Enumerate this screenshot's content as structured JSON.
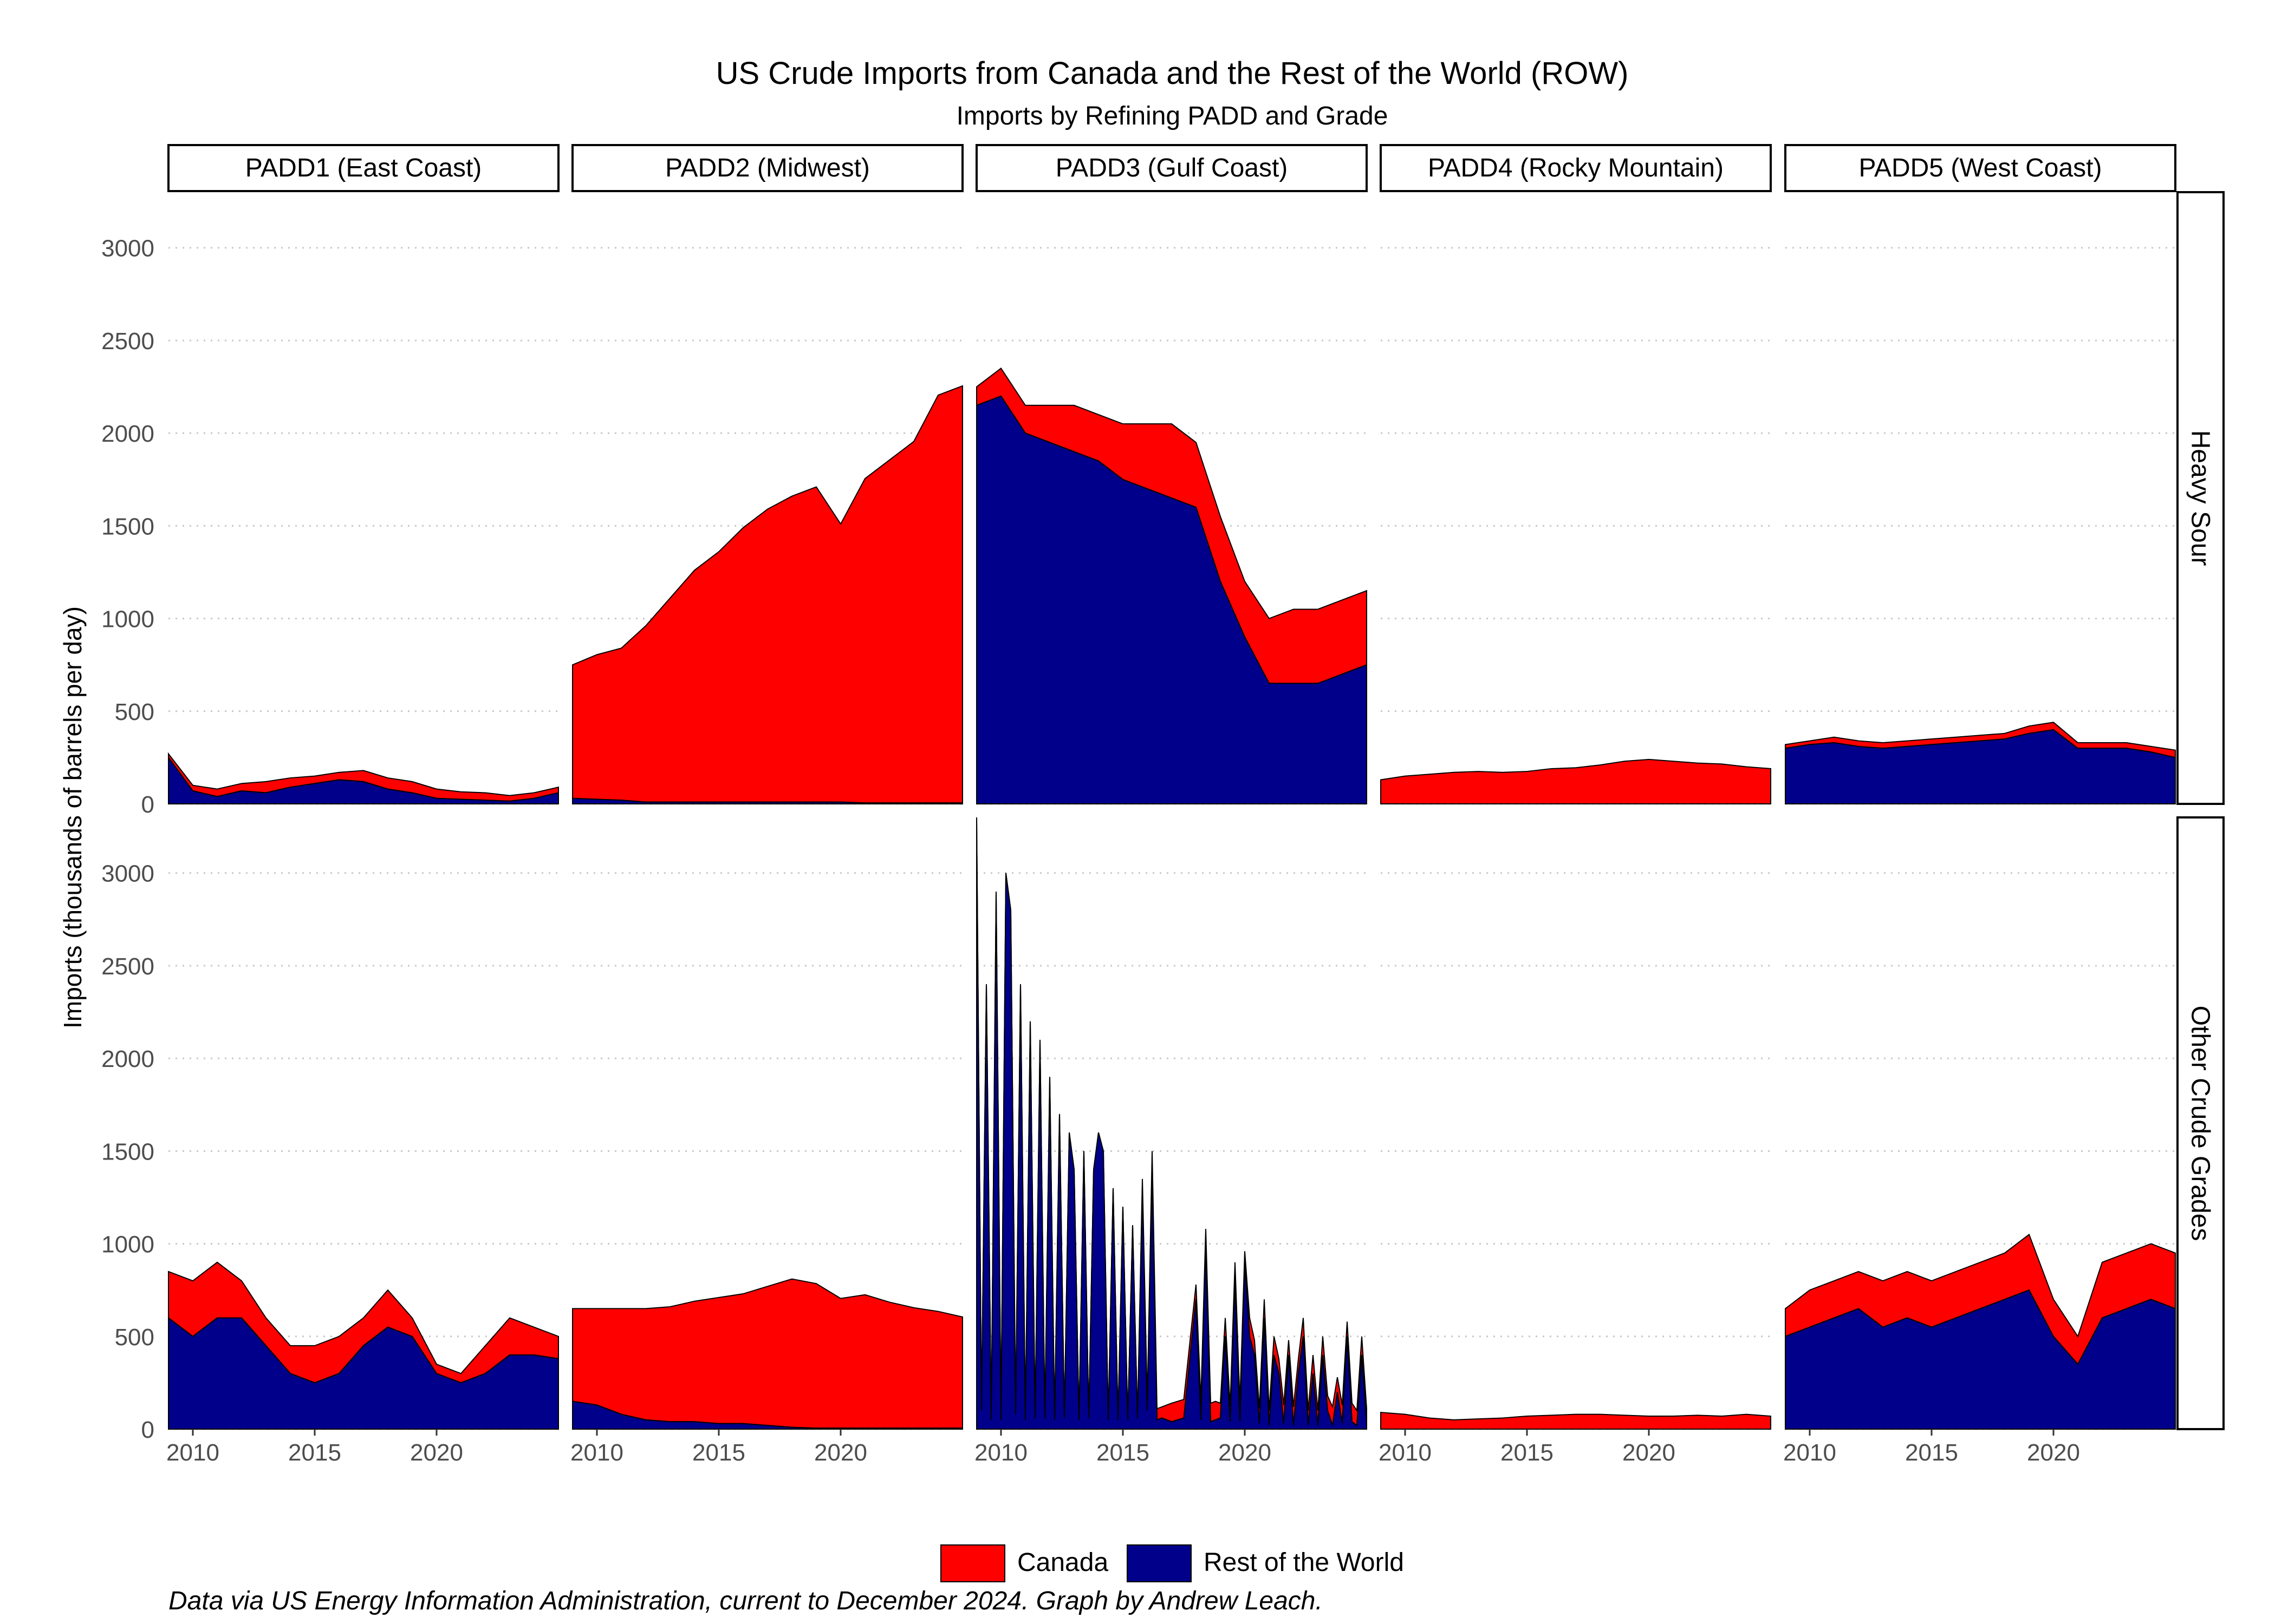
{
  "title": "US Crude Imports from Canada and the Rest of the World (ROW)",
  "subtitle": "Imports by Refining PADD and Grade",
  "caption": "Data via US Energy Information Administration, current to December 2024. Graph by Andrew Leach.",
  "colors": {
    "canada": "#ff0000",
    "row": "#00008b",
    "outline": "#000000",
    "grid": "#c8c8c8",
    "axis_text": "#4d4d4d"
  },
  "chart_data": {
    "type": "area",
    "stacked": true,
    "facets": {
      "columns": [
        "PADD1 (East Coast)",
        "PADD2 (Midwest)",
        "PADD3 (Gulf Coast)",
        "PADD4 (Rocky Mountain)",
        "PADD5 (West Coast)"
      ],
      "rows": [
        "Heavy Sour",
        "Other Crude Grades"
      ]
    },
    "ylabel": "Imports (thousands of barrels per day)",
    "ylim": [
      0,
      3300
    ],
    "y_ticks": [
      0,
      500,
      1000,
      1500,
      2000,
      2500,
      3000
    ],
    "xlim": [
      2009.0,
      2025.0
    ],
    "x_ticks": [
      2010,
      2015,
      2020
    ],
    "grid": "horizontal dotted",
    "legend": {
      "position": "bottom",
      "entries": [
        "Canada",
        "Rest of the World"
      ]
    },
    "series_names": {
      "canada": "Canada",
      "row": "Rest of the World"
    },
    "panels": [
      {
        "row": "Heavy Sour",
        "column": "PADD1 (East Coast)",
        "x": [
          2009,
          2010,
          2011,
          2012,
          2013,
          2014,
          2015,
          2016,
          2017,
          2018,
          2019,
          2020,
          2021,
          2022,
          2023,
          2024,
          2025
        ],
        "row_values": [
          250,
          70,
          40,
          70,
          60,
          90,
          110,
          130,
          120,
          80,
          60,
          30,
          25,
          20,
          15,
          30,
          60
        ],
        "canada_values": [
          20,
          30,
          40,
          40,
          60,
          50,
          40,
          40,
          60,
          60,
          60,
          50,
          40,
          40,
          30,
          30,
          30
        ]
      },
      {
        "row": "Heavy Sour",
        "column": "PADD2 (Midwest)",
        "x": [
          2009,
          2010,
          2011,
          2012,
          2013,
          2014,
          2015,
          2016,
          2017,
          2018,
          2019,
          2020,
          2021,
          2022,
          2023,
          2024,
          2025
        ],
        "row_values": [
          30,
          25,
          20,
          10,
          10,
          10,
          10,
          10,
          10,
          10,
          10,
          10,
          5,
          5,
          5,
          5,
          5
        ],
        "canada_values": [
          720,
          780,
          820,
          950,
          1100,
          1250,
          1350,
          1480,
          1580,
          1650,
          1700,
          1500,
          1750,
          1850,
          1950,
          2200,
          2250
        ]
      },
      {
        "row": "Heavy Sour",
        "column": "PADD3 (Gulf Coast)",
        "x": [
          2009,
          2010,
          2011,
          2012,
          2013,
          2014,
          2015,
          2016,
          2017,
          2018,
          2019,
          2020,
          2021,
          2022,
          2023,
          2024,
          2025
        ],
        "row_values": [
          2150,
          2200,
          2000,
          1950,
          1900,
          1850,
          1750,
          1700,
          1650,
          1600,
          1200,
          900,
          650,
          650,
          650,
          700,
          750
        ],
        "canada_values": [
          100,
          150,
          150,
          200,
          250,
          250,
          300,
          350,
          400,
          350,
          350,
          300,
          350,
          400,
          400,
          400,
          400
        ]
      },
      {
        "row": "Heavy Sour",
        "column": "PADD4 (Rocky Mountain)",
        "x": [
          2009,
          2010,
          2011,
          2012,
          2013,
          2014,
          2015,
          2016,
          2017,
          2018,
          2019,
          2020,
          2021,
          2022,
          2023,
          2024,
          2025
        ],
        "row_values": [
          0,
          0,
          0,
          0,
          0,
          0,
          0,
          0,
          0,
          0,
          0,
          0,
          0,
          0,
          0,
          0,
          0
        ],
        "canada_values": [
          130,
          150,
          160,
          170,
          175,
          170,
          175,
          190,
          195,
          210,
          230,
          240,
          230,
          220,
          215,
          200,
          190
        ]
      },
      {
        "row": "Heavy Sour",
        "column": "PADD5 (West Coast)",
        "x": [
          2009,
          2010,
          2011,
          2012,
          2013,
          2014,
          2015,
          2016,
          2017,
          2018,
          2019,
          2020,
          2021,
          2022,
          2023,
          2024,
          2025
        ],
        "row_values": [
          300,
          320,
          330,
          310,
          300,
          310,
          320,
          330,
          340,
          350,
          380,
          400,
          300,
          300,
          300,
          280,
          250
        ],
        "canada_values": [
          20,
          20,
          30,
          30,
          30,
          30,
          30,
          30,
          30,
          30,
          40,
          40,
          30,
          30,
          30,
          30,
          40
        ]
      },
      {
        "row": "Other Crude Grades",
        "column": "PADD1 (East Coast)",
        "x": [
          2009,
          2010,
          2011,
          2012,
          2013,
          2014,
          2015,
          2016,
          2017,
          2018,
          2019,
          2020,
          2021,
          2022,
          2023,
          2024,
          2025
        ],
        "row_values": [
          600,
          500,
          600,
          600,
          450,
          300,
          250,
          300,
          450,
          550,
          500,
          300,
          250,
          300,
          400,
          400,
          380
        ],
        "canada_values": [
          250,
          300,
          300,
          200,
          150,
          150,
          200,
          200,
          150,
          200,
          100,
          50,
          50,
          150,
          200,
          150,
          120
        ]
      },
      {
        "row": "Other Crude Grades",
        "column": "PADD2 (Midwest)",
        "x": [
          2009,
          2010,
          2011,
          2012,
          2013,
          2014,
          2015,
          2016,
          2017,
          2018,
          2019,
          2020,
          2021,
          2022,
          2023,
          2024,
          2025
        ],
        "row_values": [
          150,
          130,
          80,
          50,
          40,
          40,
          30,
          30,
          20,
          10,
          5,
          5,
          5,
          5,
          5,
          5,
          5
        ],
        "canada_values": [
          500,
          520,
          570,
          600,
          620,
          650,
          680,
          700,
          750,
          800,
          780,
          700,
          720,
          680,
          650,
          630,
          600
        ]
      },
      {
        "row": "Other Crude Grades",
        "column": "PADD3 (Gulf Coast)",
        "x": [
          2009,
          2009.2,
          2009.4,
          2009.6,
          2009.8,
          2010,
          2010.2,
          2010.4,
          2010.6,
          2010.8,
          2011,
          2011.2,
          2011.4,
          2011.6,
          2011.8,
          2012,
          2012.2,
          2012.4,
          2012.6,
          2012.8,
          2013,
          2013.2,
          2013.4,
          2013.6,
          2013.8,
          2014,
          2014.2,
          2014.4,
          2014.6,
          2014.8,
          2015,
          2015.2,
          2015.4,
          2015.6,
          2015.8,
          2016,
          2016.2,
          2016.4,
          2016.6,
          2016.8,
          2017,
          2017.5,
          2018,
          2018.2,
          2018.4,
          2018.6,
          2018.8,
          2019,
          2019.2,
          2019.4,
          2019.6,
          2019.8,
          2020,
          2020.2,
          2020.4,
          2020.6,
          2020.8,
          2021,
          2021.2,
          2021.4,
          2021.6,
          2021.8,
          2022,
          2022.2,
          2022.4,
          2022.6,
          2022.8,
          2023,
          2023.2,
          2023.4,
          2023.6,
          2023.8,
          2024,
          2024.2,
          2024.4,
          2024.6,
          2024.8,
          2025
        ],
        "row_values": [
          3300,
          100,
          2400,
          50,
          2900,
          50,
          3000,
          2800,
          80,
          2400,
          50,
          2200,
          60,
          2100,
          60,
          1900,
          50,
          1700,
          60,
          1600,
          1400,
          50,
          1500,
          60,
          1400,
          1600,
          1500,
          50,
          1300,
          50,
          1200,
          50,
          1100,
          60,
          1300,
          100,
          1400,
          50,
          60,
          50,
          40,
          60,
          700,
          50,
          1000,
          40,
          50,
          60,
          500,
          40,
          800,
          40,
          900,
          500,
          400,
          30,
          600,
          20,
          400,
          300,
          30,
          400,
          20,
          300,
          500,
          20,
          300,
          20,
          400,
          100,
          20,
          200,
          30,
          500,
          40,
          20,
          400,
          30
        ],
        "canada_values": [
          0,
          0,
          0,
          0,
          0,
          0,
          0,
          0,
          0,
          0,
          0,
          0,
          0,
          0,
          0,
          0,
          0,
          0,
          0,
          0,
          0,
          0,
          0,
          0,
          0,
          0,
          0,
          0,
          0,
          0,
          0,
          0,
          0,
          0,
          50,
          50,
          100,
          60,
          60,
          80,
          100,
          100,
          80,
          100,
          80,
          100,
          100,
          80,
          100,
          80,
          100,
          100,
          60,
          100,
          80,
          80,
          100,
          80,
          100,
          80,
          100,
          80,
          100,
          80,
          100,
          80,
          100,
          80,
          100,
          80,
          100,
          80,
          100,
          80,
          100,
          80,
          100,
          80
        ]
      },
      {
        "row": "Other Crude Grades",
        "column": "PADD4 (Rocky Mountain)",
        "x": [
          2009,
          2010,
          2011,
          2012,
          2013,
          2014,
          2015,
          2016,
          2017,
          2018,
          2019,
          2020,
          2021,
          2022,
          2023,
          2024,
          2025
        ],
        "row_values": [
          0,
          0,
          0,
          0,
          0,
          0,
          0,
          0,
          0,
          0,
          0,
          0,
          0,
          0,
          0,
          0,
          0
        ],
        "canada_values": [
          90,
          80,
          60,
          50,
          55,
          60,
          70,
          75,
          80,
          80,
          75,
          70,
          70,
          75,
          70,
          80,
          70
        ]
      },
      {
        "row": "Other Crude Grades",
        "column": "PADD5 (West Coast)",
        "x": [
          2009,
          2010,
          2011,
          2012,
          2013,
          2014,
          2015,
          2016,
          2017,
          2018,
          2019,
          2020,
          2021,
          2022,
          2023,
          2024,
          2025
        ],
        "row_values": [
          500,
          550,
          600,
          650,
          550,
          600,
          550,
          600,
          650,
          700,
          750,
          500,
          350,
          600,
          650,
          700,
          650
        ],
        "canada_values": [
          150,
          200,
          200,
          200,
          250,
          250,
          250,
          250,
          250,
          250,
          300,
          200,
          150,
          300,
          300,
          300,
          300
        ]
      }
    ]
  }
}
